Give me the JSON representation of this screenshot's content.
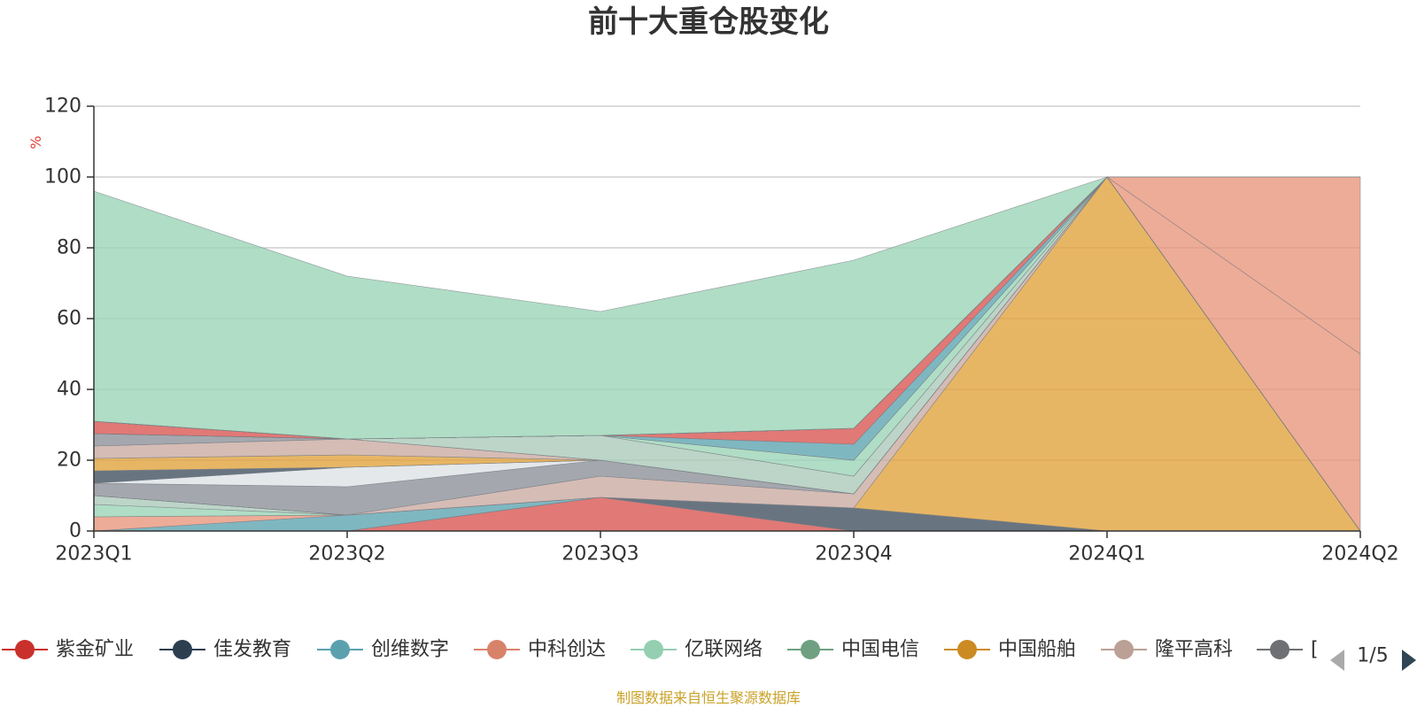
{
  "chart_data": {
    "type": "area",
    "title": "前十大重仓股变化",
    "ylabel": "%",
    "ylim": [
      0,
      120
    ],
    "yticks": [
      0,
      20,
      40,
      60,
      80,
      100,
      120
    ],
    "categories": [
      "2023Q1",
      "2023Q2",
      "2023Q3",
      "2023Q4",
      "2024Q1",
      "2024Q2"
    ],
    "grid": true,
    "legend_position": "bottom",
    "series": [
      {
        "color": "#d9534f",
        "values": [
          0,
          0,
          9.5,
          0,
          0,
          0
        ]
      },
      {
        "color": "#3d4e5e",
        "values": [
          0,
          0,
          0,
          6.5,
          0,
          0
        ]
      },
      {
        "color": "#5ba3b0",
        "values": [
          0,
          4.5,
          0,
          0,
          0,
          0
        ]
      },
      {
        "color": "#e8957a",
        "values": [
          4,
          0,
          0,
          0,
          0,
          0
        ]
      },
      {
        "color": "#9ad3b5",
        "values": [
          3.5,
          0,
          0,
          0,
          0,
          0
        ]
      },
      {
        "color": "#a9c9b8",
        "values": [
          2.5,
          0,
          0,
          0,
          0,
          0
        ]
      },
      {
        "color": "#e0a23a",
        "values": [
          0,
          0,
          0,
          0,
          100,
          0
        ]
      },
      {
        "color": "#c9a9a0",
        "values": [
          0,
          0,
          6,
          4,
          0,
          0
        ]
      },
      {
        "color": "#8a8f97",
        "values": [
          3.5,
          8,
          4.5,
          0,
          0,
          0
        ]
      },
      {
        "color": "#dde1e6",
        "values": [
          0,
          5.5,
          0,
          0,
          0,
          0
        ]
      },
      {
        "color": "#3d4e5e",
        "values": [
          3.5,
          0,
          0,
          0,
          0,
          0
        ]
      },
      {
        "color": "#e0a23a",
        "values": [
          3.5,
          3.5,
          0,
          0,
          0,
          0
        ]
      },
      {
        "color": "#c9a9a0",
        "values": [
          3.5,
          4.5,
          0,
          0,
          0,
          0
        ]
      },
      {
        "color": "#8a8f97",
        "values": [
          3.5,
          0,
          0,
          0,
          0,
          0
        ]
      },
      {
        "color": "#a9c9b8",
        "values": [
          0,
          0,
          7,
          5,
          0,
          0
        ]
      },
      {
        "color": "#9ad3b5",
        "values": [
          0,
          0,
          0,
          4.5,
          0,
          0
        ]
      },
      {
        "color": "#5ba3b0",
        "values": [
          0,
          0,
          0,
          4.5,
          0,
          0
        ]
      },
      {
        "color": "#d9534f",
        "values": [
          3.5,
          0,
          0,
          4.5,
          0,
          0
        ]
      },
      {
        "color": "#dde1e6",
        "values": [
          0,
          0,
          0,
          0,
          0,
          0
        ]
      },
      {
        "color": "#3d4e5e",
        "values": [
          0,
          0,
          0,
          0,
          0,
          0
        ]
      },
      {
        "color": "#9ab8a9",
        "values": [
          0,
          0,
          0,
          0,
          0,
          0
        ]
      },
      {
        "color": "#d9534f",
        "values": [
          0,
          0,
          0,
          0,
          0,
          0
        ]
      },
      {
        "color": "#e8957a",
        "values": [
          0,
          0,
          0,
          0,
          0,
          0
        ]
      },
      {
        "color": "#dde1e6",
        "values": [
          0,
          0,
          0,
          0,
          0,
          0
        ]
      },
      {
        "color": "#8a8f97",
        "values": [
          0,
          0,
          0,
          0,
          0,
          0
        ]
      },
      {
        "color": "#e0a23a",
        "values": [
          0,
          0,
          0,
          0,
          0,
          0
        ]
      },
      {
        "color": "#5ba3b0",
        "values": [
          0,
          0,
          0,
          0,
          0,
          0
        ]
      },
      {
        "color": "#c9a9a0",
        "values": [
          0,
          0,
          0,
          0,
          0,
          0
        ]
      },
      {
        "color": "#9ab8a9",
        "values": [
          0,
          0,
          0,
          0,
          0,
          0
        ]
      },
      {
        "color": "#b0b5bc",
        "values": [
          0,
          0,
          0,
          0,
          0,
          0
        ]
      },
      {
        "color": "#3d4e5e",
        "values": [
          0,
          0,
          0,
          0,
          0,
          0
        ]
      },
      {
        "color": "#9ad3b5",
        "values": [
          0,
          0,
          0,
          0,
          0,
          0
        ]
      },
      {
        "color": "#e0a23a",
        "values": [
          0,
          0,
          0,
          0,
          0,
          0
        ]
      },
      {
        "color": "#dde1e6",
        "values": [
          0,
          0,
          0,
          0,
          0,
          0
        ]
      },
      {
        "color": "#8a8f97",
        "values": [
          0,
          0,
          0,
          0,
          0,
          0
        ]
      },
      {
        "color": "#d9534f",
        "values": [
          0,
          0,
          0,
          0,
          0,
          0
        ]
      },
      {
        "color": "#5ba3b0",
        "values": [
          0,
          0,
          0,
          0,
          0,
          0
        ]
      },
      {
        "color": "#e8957a",
        "values": [
          0,
          0,
          0,
          0,
          0,
          0
        ]
      },
      {
        "color": "#e8957a",
        "values": [
          0,
          0,
          0,
          0,
          0,
          50
        ]
      },
      {
        "color": "#e8957a",
        "values": [
          0,
          0,
          0,
          0,
          0,
          50
        ]
      },
      {
        "color": "#9ad3b5",
        "values": [
          65,
          46,
          35,
          47.5,
          0,
          0
        ]
      }
    ]
  },
  "legend": {
    "items": [
      {
        "label": "紫金矿业",
        "color": "#c9302c"
      },
      {
        "label": "佳发教育",
        "color": "#2c3e50"
      },
      {
        "label": "创维数字",
        "color": "#5aa1ad"
      },
      {
        "label": "中科创达",
        "color": "#d9826a"
      },
      {
        "label": "亿联网络",
        "color": "#94cfb1"
      },
      {
        "label": "中国电信",
        "color": "#6fa081"
      },
      {
        "label": "中国船舶",
        "color": "#cc8a22"
      },
      {
        "label": "隆平高科",
        "color": "#bba096"
      },
      {
        "label": "[",
        "color": "#6e7074"
      }
    ],
    "page": "1/5"
  },
  "source_note": "制图数据来自恒生聚源数据库"
}
